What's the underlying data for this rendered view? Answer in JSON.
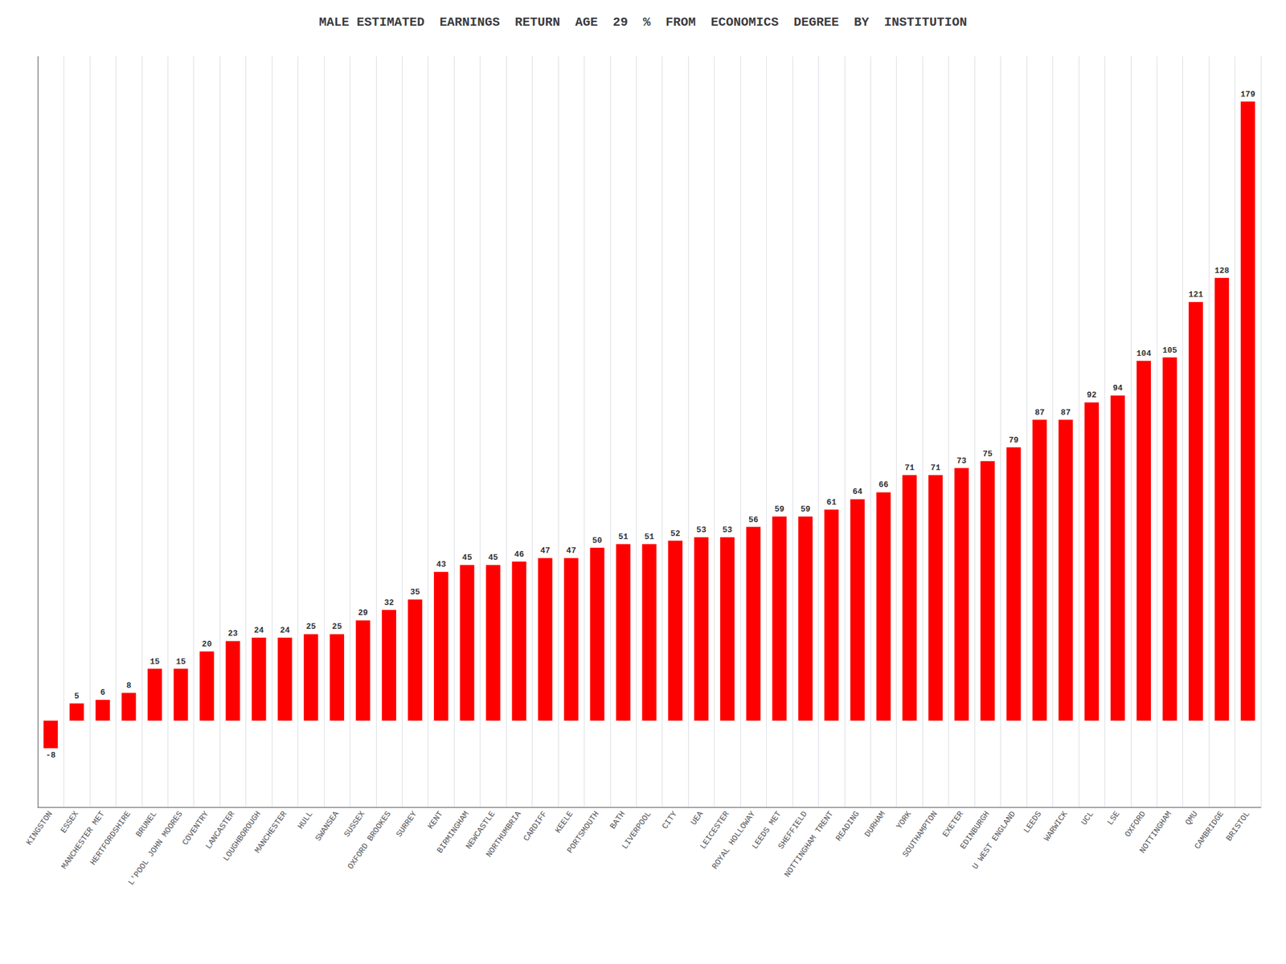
{
  "chart_data": {
    "type": "bar",
    "title": "MALE ESTIMATED  EARNINGS  RETURN  AGE  29  %  FROM  ECONOMICS  DEGREE  BY  INSTITUTION",
    "categories": [
      "KINGSTON",
      "ESSEX",
      "MANCHESTER MET",
      "HERTFORDSHIRE",
      "BRUNEL",
      "L'POOL JOHN MOORES",
      "COVENTRY",
      "LANCASTER",
      "LOUGHBOROUGH",
      "MANCHESTER",
      "HULL",
      "SWANSEA",
      "SUSSEX",
      "OXFORD BROOKES",
      "SURREY",
      "KENT",
      "BIRMINGHAM",
      "NEWCASTLE",
      "NORTHUMBRIA",
      "CARDIFF",
      "KEELE",
      "PORTSMOUTH",
      "BATH",
      "LIVERPOOL",
      "CITY",
      "UEA",
      "LEICESTER",
      "ROYAL HOLLOWAY",
      "LEEDS MET",
      "SHEFFIELD",
      "NOTTINGHAM TRENT",
      "READING",
      "DURHAM",
      "YORK",
      "SOUTHAMPTON",
      "EXETER",
      "EDINBURGH",
      "U WEST ENGLAND",
      "LEEDS",
      "WARWICK",
      "UCL",
      "LSE",
      "OXFORD",
      "NOTTINGHAM",
      "QMU",
      "CAMBRIDGE",
      "BRISTOL"
    ],
    "values": [
      -8,
      5,
      6,
      8,
      15,
      15,
      20,
      23,
      24,
      24,
      25,
      25,
      29,
      32,
      35,
      43,
      45,
      45,
      46,
      47,
      47,
      50,
      51,
      51,
      52,
      53,
      53,
      56,
      59,
      59,
      61,
      64,
      66,
      71,
      71,
      73,
      75,
      79,
      87,
      87,
      92,
      94,
      104,
      105,
      121,
      128,
      179
    ],
    "color": "#ff0000",
    "ylim": [
      -25,
      192
    ],
    "grid": true,
    "data_labels": true,
    "tick_labels": "x"
  }
}
